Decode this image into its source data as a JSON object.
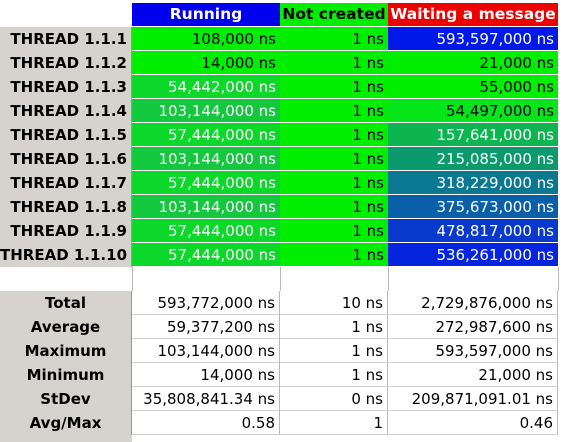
{
  "headers": {
    "running": "Running",
    "not_created": "Not created",
    "waiting": "Waiting a message"
  },
  "header_colors": {
    "running": "#0000ee",
    "not_created": "#00ee00",
    "waiting": "#ee0000"
  },
  "threads": [
    {
      "label": "THREAD 1.1.1",
      "running": "108,000 ns",
      "not_created": "1 ns",
      "waiting": "593,597,000 ns",
      "running_color": "#00ee00",
      "waiting_color": "#0018e8"
    },
    {
      "label": "THREAD 1.1.2",
      "running": "14,000 ns",
      "not_created": "1 ns",
      "waiting": "21,000 ns",
      "running_color": "#00ee00",
      "waiting_color": "#00ee00"
    },
    {
      "label": "THREAD 1.1.3",
      "running": "54,442,000 ns",
      "not_created": "1 ns",
      "waiting": "55,000 ns",
      "running_color": "#0cd82a",
      "waiting_color": "#00ee00"
    },
    {
      "label": "THREAD 1.1.4",
      "running": "103,144,000 ns",
      "not_created": "1 ns",
      "waiting": "54,497,000 ns",
      "running_color": "#14c83e",
      "waiting_color": "#06e51a"
    },
    {
      "label": "THREAD 1.1.5",
      "running": "57,444,000 ns",
      "not_created": "1 ns",
      "waiting": "157,641,000 ns",
      "running_color": "#0cd82a",
      "waiting_color": "#0cb550"
    },
    {
      "label": "THREAD 1.1.6",
      "running": "103,144,000 ns",
      "not_created": "1 ns",
      "waiting": "215,085,000 ns",
      "running_color": "#14c83e",
      "waiting_color": "#0a9a6e"
    },
    {
      "label": "THREAD 1.1.7",
      "running": "57,444,000 ns",
      "not_created": "1 ns",
      "waiting": "318,229,000 ns",
      "running_color": "#0cd82a",
      "waiting_color": "#0a7890"
    },
    {
      "label": "THREAD 1.1.8",
      "running": "103,144,000 ns",
      "not_created": "1 ns",
      "waiting": "375,673,000 ns",
      "running_color": "#14c83e",
      "waiting_color": "#0a60a8"
    },
    {
      "label": "THREAD 1.1.9",
      "running": "57,444,000 ns",
      "not_created": "1 ns",
      "waiting": "478,817,000 ns",
      "running_color": "#0cd82a",
      "waiting_color": "#0838cc"
    },
    {
      "label": "THREAD 1.1.10",
      "running": "57,444,000 ns",
      "not_created": "1 ns",
      "waiting": "536,261,000 ns",
      "running_color": "#0cd82a",
      "waiting_color": "#0424de"
    }
  ],
  "stats": [
    {
      "label": "Total",
      "running": "593,772,000 ns",
      "not_created": "10 ns",
      "waiting": "2,729,876,000 ns"
    },
    {
      "label": "Average",
      "running": "59,377,200 ns",
      "not_created": "1 ns",
      "waiting": "272,987,600 ns"
    },
    {
      "label": "Maximum",
      "running": "103,144,000 ns",
      "not_created": "1 ns",
      "waiting": "593,597,000 ns"
    },
    {
      "label": "Minimum",
      "running": "14,000 ns",
      "not_created": "1 ns",
      "waiting": "21,000 ns"
    },
    {
      "label": "StDev",
      "running": "35,808,841.34 ns",
      "not_created": "0 ns",
      "waiting": "209,871,091.01 ns"
    },
    {
      "label": "Avg/Max",
      "running": "0.58",
      "not_created": "1",
      "waiting": "0.46"
    }
  ]
}
